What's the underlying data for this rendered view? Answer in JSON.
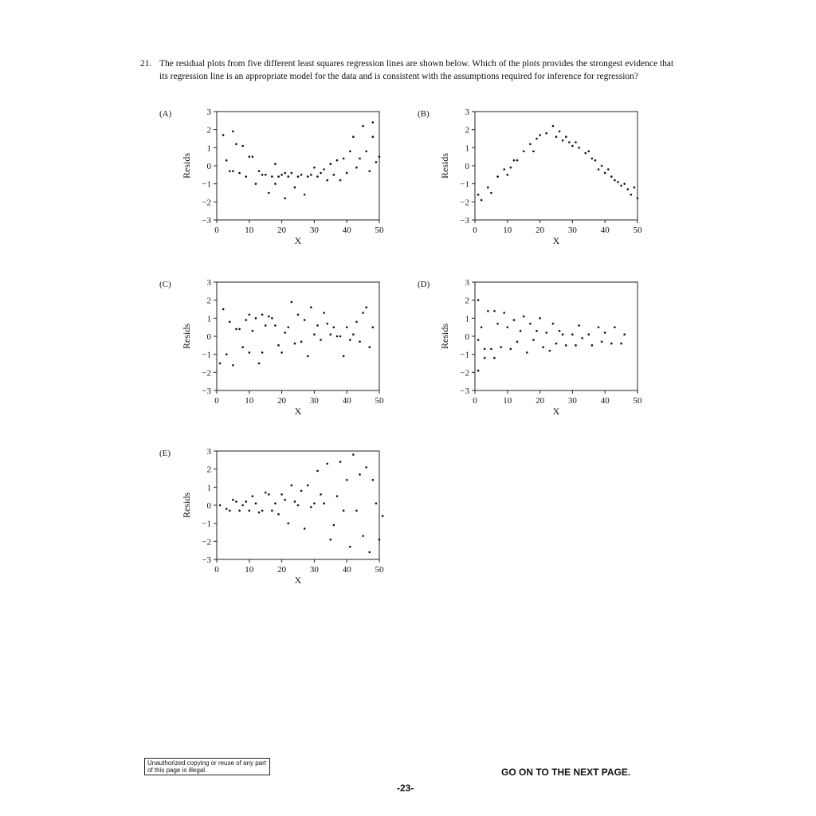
{
  "question": {
    "number": "21.",
    "text": "The residual plots from five different least squares regression lines are shown below. Which of the plots provides the strongest evidence that its regression line is an appropriate model for the data and is consistent with the assumptions required for inference for regression?"
  },
  "footer": {
    "notice": "Unauthorized copying or reuse of any part of this page is illegal.",
    "next_page": "GO ON TO THE NEXT PAGE.",
    "page_number": "-23-"
  },
  "chart_data": [
    {
      "type": "scatter",
      "label": "(A)",
      "xlabel": "X",
      "ylabel": "Resids",
      "xlim": [
        0,
        50
      ],
      "ylim": [
        -3,
        3
      ],
      "xticks": [
        0,
        10,
        20,
        30,
        40,
        50
      ],
      "yticks": [
        3,
        2,
        1,
        0,
        -1,
        -2,
        -3
      ],
      "points": [
        [
          2,
          1.7
        ],
        [
          3,
          0.3
        ],
        [
          4,
          -0.3
        ],
        [
          5,
          1.9
        ],
        [
          5,
          -0.3
        ],
        [
          6,
          1.2
        ],
        [
          7,
          -0.4
        ],
        [
          8,
          1.1
        ],
        [
          9,
          -0.6
        ],
        [
          10,
          0.5
        ],
        [
          11,
          0.5
        ],
        [
          12,
          -1.0
        ],
        [
          13,
          -0.3
        ],
        [
          14,
          -0.5
        ],
        [
          15,
          -0.5
        ],
        [
          16,
          -1.5
        ],
        [
          17,
          -0.6
        ],
        [
          18,
          0.1
        ],
        [
          18,
          -1.0
        ],
        [
          19,
          -0.6
        ],
        [
          20,
          -0.5
        ],
        [
          21,
          -1.8
        ],
        [
          21,
          -0.4
        ],
        [
          22,
          -0.6
        ],
        [
          23,
          -0.4
        ],
        [
          24,
          -1.2
        ],
        [
          25,
          -0.6
        ],
        [
          26,
          -0.5
        ],
        [
          27,
          -1.6
        ],
        [
          28,
          -0.6
        ],
        [
          29,
          -0.5
        ],
        [
          30,
          -0.1
        ],
        [
          31,
          -0.6
        ],
        [
          32,
          -0.4
        ],
        [
          33,
          -0.2
        ],
        [
          34,
          -0.8
        ],
        [
          35,
          0.1
        ],
        [
          36,
          -0.5
        ],
        [
          37,
          0.3
        ],
        [
          38,
          -0.8
        ],
        [
          39,
          0.4
        ],
        [
          40,
          -0.4
        ],
        [
          41,
          0.8
        ],
        [
          42,
          1.6
        ],
        [
          43,
          -0.1
        ],
        [
          44,
          0.4
        ],
        [
          45,
          2.2
        ],
        [
          46,
          0.8
        ],
        [
          47,
          -0.3
        ],
        [
          48,
          2.4
        ],
        [
          48,
          1.6
        ],
        [
          49,
          0.2
        ],
        [
          50,
          0.5
        ]
      ]
    },
    {
      "type": "scatter",
      "label": "(B)",
      "xlabel": "X",
      "ylabel": "Resids",
      "xlim": [
        0,
        50
      ],
      "ylim": [
        -3,
        3
      ],
      "xticks": [
        0,
        10,
        20,
        30,
        40,
        50
      ],
      "yticks": [
        3,
        2,
        1,
        0,
        -1,
        -2,
        -3
      ],
      "points": [
        [
          1,
          -1.6
        ],
        [
          2,
          -1.9
        ],
        [
          4,
          -1.2
        ],
        [
          5,
          -1.5
        ],
        [
          7,
          -0.6
        ],
        [
          9,
          -0.2
        ],
        [
          10,
          -0.5
        ],
        [
          11,
          -0.1
        ],
        [
          12,
          0.3
        ],
        [
          13,
          0.3
        ],
        [
          15,
          0.8
        ],
        [
          17,
          1.2
        ],
        [
          18,
          0.8
        ],
        [
          19,
          1.5
        ],
        [
          20,
          1.7
        ],
        [
          22,
          1.8
        ],
        [
          24,
          2.2
        ],
        [
          25,
          1.6
        ],
        [
          26,
          1.9
        ],
        [
          27,
          1.4
        ],
        [
          28,
          1.6
        ],
        [
          29,
          1.3
        ],
        [
          30,
          1.1
        ],
        [
          31,
          1.3
        ],
        [
          32,
          1.0
        ],
        [
          34,
          0.7
        ],
        [
          35,
          0.8
        ],
        [
          36,
          0.4
        ],
        [
          37,
          0.3
        ],
        [
          38,
          -0.2
        ],
        [
          39,
          0.0
        ],
        [
          40,
          -0.4
        ],
        [
          41,
          -0.2
        ],
        [
          42,
          -0.6
        ],
        [
          43,
          -0.8
        ],
        [
          44,
          -0.9
        ],
        [
          45,
          -1.1
        ],
        [
          46,
          -1.0
        ],
        [
          47,
          -1.3
        ],
        [
          48,
          -1.6
        ],
        [
          49,
          -1.2
        ],
        [
          50,
          -1.8
        ]
      ]
    },
    {
      "type": "scatter",
      "label": "(C)",
      "xlabel": "X",
      "ylabel": "Resids",
      "xlim": [
        0,
        50
      ],
      "ylim": [
        -3,
        3
      ],
      "xticks": [
        0,
        10,
        20,
        30,
        40,
        50
      ],
      "yticks": [
        3,
        2,
        1,
        0,
        -1,
        -2,
        -3
      ],
      "points": [
        [
          1,
          -1.5
        ],
        [
          2,
          1.5
        ],
        [
          3,
          -1.0
        ],
        [
          4,
          0.8
        ],
        [
          5,
          -1.6
        ],
        [
          6,
          0.4
        ],
        [
          7,
          0.4
        ],
        [
          8,
          -0.6
        ],
        [
          9,
          0.9
        ],
        [
          10,
          -0.9
        ],
        [
          10,
          1.2
        ],
        [
          11,
          0.3
        ],
        [
          12,
          1.0
        ],
        [
          13,
          -1.5
        ],
        [
          14,
          1.2
        ],
        [
          14,
          -0.9
        ],
        [
          15,
          0.6
        ],
        [
          16,
          1.1
        ],
        [
          17,
          1.0
        ],
        [
          18,
          0.6
        ],
        [
          19,
          -0.5
        ],
        [
          20,
          -0.9
        ],
        [
          21,
          0.2
        ],
        [
          22,
          0.5
        ],
        [
          23,
          1.9
        ],
        [
          24,
          -0.4
        ],
        [
          25,
          1.2
        ],
        [
          26,
          -0.3
        ],
        [
          27,
          0.9
        ],
        [
          28,
          -1.1
        ],
        [
          29,
          1.6
        ],
        [
          30,
          0.1
        ],
        [
          31,
          0.6
        ],
        [
          32,
          -0.2
        ],
        [
          33,
          1.3
        ],
        [
          34,
          0.7
        ],
        [
          35,
          0.1
        ],
        [
          36,
          0.5
        ],
        [
          37,
          0.0
        ],
        [
          38,
          0.0
        ],
        [
          39,
          -1.1
        ],
        [
          40,
          0.5
        ],
        [
          41,
          -0.2
        ],
        [
          42,
          0.1
        ],
        [
          43,
          0.8
        ],
        [
          44,
          -0.3
        ],
        [
          45,
          1.3
        ],
        [
          46,
          1.6
        ],
        [
          47,
          -0.6
        ],
        [
          48,
          0.5
        ]
      ]
    },
    {
      "type": "scatter",
      "label": "(D)",
      "xlabel": "X",
      "ylabel": "Resids",
      "xlim": [
        0,
        50
      ],
      "ylim": [
        -3,
        3
      ],
      "xticks": [
        0,
        10,
        20,
        30,
        40,
        50
      ],
      "yticks": [
        3,
        2,
        1,
        0,
        -1,
        -2,
        -3
      ],
      "points": [
        [
          1,
          2.0
        ],
        [
          1,
          -1.9
        ],
        [
          1,
          -0.2
        ],
        [
          2,
          0.5
        ],
        [
          3,
          -1.2
        ],
        [
          3,
          -0.7
        ],
        [
          4,
          1.4
        ],
        [
          5,
          -0.7
        ],
        [
          6,
          1.4
        ],
        [
          6,
          -1.2
        ],
        [
          7,
          0.7
        ],
        [
          8,
          -0.6
        ],
        [
          9,
          1.3
        ],
        [
          10,
          0.5
        ],
        [
          11,
          -0.7
        ],
        [
          12,
          0.9
        ],
        [
          13,
          -0.3
        ],
        [
          14,
          0.3
        ],
        [
          15,
          1.1
        ],
        [
          16,
          -0.9
        ],
        [
          17,
          0.7
        ],
        [
          18,
          -0.2
        ],
        [
          19,
          0.3
        ],
        [
          20,
          1.0
        ],
        [
          21,
          -0.6
        ],
        [
          22,
          0.2
        ],
        [
          23,
          -0.8
        ],
        [
          24,
          0.7
        ],
        [
          25,
          -0.4
        ],
        [
          26,
          0.3
        ],
        [
          27,
          0.1
        ],
        [
          28,
          -0.5
        ],
        [
          30,
          0.1
        ],
        [
          31,
          -0.5
        ],
        [
          32,
          0.6
        ],
        [
          33,
          -0.1
        ],
        [
          35,
          0.1
        ],
        [
          36,
          -0.5
        ],
        [
          38,
          0.5
        ],
        [
          39,
          -0.3
        ],
        [
          40,
          0.2
        ],
        [
          42,
          -0.4
        ],
        [
          43,
          0.5
        ],
        [
          45,
          -0.4
        ],
        [
          46,
          0.1
        ]
      ]
    },
    {
      "type": "scatter",
      "label": "(E)",
      "xlabel": "X",
      "ylabel": "Resids",
      "xlim": [
        0,
        50
      ],
      "ylim": [
        -3,
        3
      ],
      "xticks": [
        0,
        10,
        20,
        30,
        40,
        50
      ],
      "yticks": [
        3,
        2,
        1,
        0,
        -1,
        -2,
        -3
      ],
      "points": [
        [
          1,
          0.0
        ],
        [
          3,
          -0.2
        ],
        [
          4,
          -0.3
        ],
        [
          5,
          0.3
        ],
        [
          6,
          0.2
        ],
        [
          7,
          -0.3
        ],
        [
          8,
          0.0
        ],
        [
          9,
          0.2
        ],
        [
          10,
          -0.3
        ],
        [
          11,
          0.5
        ],
        [
          12,
          0.1
        ],
        [
          13,
          -0.4
        ],
        [
          14,
          -0.3
        ],
        [
          15,
          0.7
        ],
        [
          16,
          0.6
        ],
        [
          17,
          -0.3
        ],
        [
          18,
          0.1
        ],
        [
          19,
          -0.5
        ],
        [
          20,
          0.6
        ],
        [
          21,
          0.3
        ],
        [
          22,
          -1.0
        ],
        [
          23,
          1.1
        ],
        [
          24,
          0.2
        ],
        [
          25,
          0.0
        ],
        [
          26,
          0.8
        ],
        [
          27,
          -1.3
        ],
        [
          28,
          1.1
        ],
        [
          29,
          -0.1
        ],
        [
          30,
          0.1
        ],
        [
          31,
          1.9
        ],
        [
          32,
          0.6
        ],
        [
          33,
          0.1
        ],
        [
          34,
          2.3
        ],
        [
          35,
          -1.9
        ],
        [
          36,
          -1.1
        ],
        [
          37,
          0.5
        ],
        [
          38,
          2.4
        ],
        [
          39,
          -0.3
        ],
        [
          40,
          1.4
        ],
        [
          41,
          -2.3
        ],
        [
          42,
          2.8
        ],
        [
          43,
          -0.3
        ],
        [
          44,
          1.7
        ],
        [
          45,
          -1.7
        ],
        [
          46,
          2.1
        ],
        [
          47,
          -2.6
        ],
        [
          48,
          1.4
        ],
        [
          49,
          0.1
        ],
        [
          50,
          -1.9
        ],
        [
          51,
          -0.6
        ]
      ]
    }
  ]
}
